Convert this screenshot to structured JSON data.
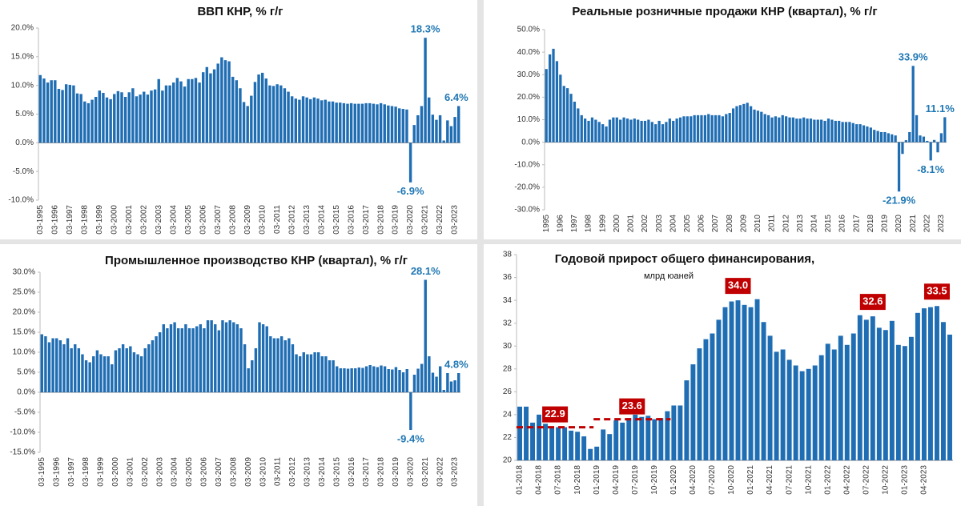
{
  "chart_data": [
    {
      "type": "bar",
      "title": "ВВП КНР, % г/г",
      "color": "#1f6db3",
      "label_color": "#1f77b4",
      "categories": [
        "03-1995",
        null,
        null,
        null,
        "03-1996",
        null,
        null,
        null,
        "03-1997",
        null,
        null,
        null,
        "03-1998",
        null,
        null,
        null,
        "03-1999",
        null,
        null,
        null,
        "03-2000",
        null,
        null,
        null,
        "03-2001",
        null,
        null,
        null,
        "03-2002",
        null,
        null,
        null,
        "03-2003",
        null,
        null,
        null,
        "03-2004",
        null,
        null,
        null,
        "03-2005",
        null,
        null,
        null,
        "03-2006",
        null,
        null,
        null,
        "03-2007",
        null,
        null,
        null,
        "03-2008",
        null,
        null,
        null,
        "03-2009",
        null,
        null,
        null,
        "03-2010",
        null,
        null,
        null,
        "03-2011",
        null,
        null,
        null,
        "03-2012",
        null,
        null,
        null,
        "03-2013",
        null,
        null,
        null,
        "03-2014",
        null,
        null,
        null,
        "03-2015",
        null,
        null,
        null,
        "03-2016",
        null,
        null,
        null,
        "03-2017",
        null,
        null,
        null,
        "03-2018",
        null,
        null,
        null,
        "03-2019",
        null,
        null,
        null,
        "03-2020",
        null,
        null,
        null,
        "03-2021",
        null,
        null,
        null,
        "03-2022",
        null,
        null,
        null,
        "03-2023",
        null
      ],
      "values": [
        11.8,
        11.2,
        10.5,
        10.9,
        10.9,
        9.4,
        9.2,
        10.2,
        10.1,
        10.0,
        8.6,
        8.5,
        7.2,
        6.9,
        7.5,
        8.0,
        9.1,
        8.7,
        7.9,
        7.6,
        8.5,
        9.0,
        8.8,
        8.0,
        8.8,
        9.5,
        8.1,
        8.4,
        8.9,
        8.4,
        9.1,
        9.3,
        11.1,
        9.1,
        10.0,
        10.0,
        10.5,
        11.3,
        10.7,
        9.8,
        11.1,
        11.1,
        11.3,
        10.5,
        12.3,
        13.2,
        12.1,
        12.8,
        13.8,
        14.9,
        14.4,
        14.2,
        11.5,
        10.9,
        9.5,
        7.1,
        6.4,
        8.2,
        10.6,
        11.9,
        12.2,
        11.2,
        10.0,
        9.9,
        10.2,
        10.0,
        9.5,
        8.9,
        8.1,
        7.7,
        7.5,
        8.1,
        7.9,
        7.6,
        7.9,
        7.7,
        7.4,
        7.5,
        7.2,
        7.2,
        7.0,
        7.0,
        6.9,
        6.8,
        6.9,
        6.8,
        6.8,
        6.8,
        6.9,
        6.9,
        6.8,
        6.7,
        6.9,
        6.7,
        6.5,
        6.4,
        6.3,
        6.0,
        5.9,
        5.8,
        -6.9,
        3.1,
        4.8,
        6.4,
        18.3,
        7.9,
        4.9,
        4.0,
        4.8,
        0.4,
        3.9,
        2.9,
        4.5,
        6.4
      ],
      "value_labels": {
        "100": "-6.9%",
        "104": "18.3%",
        "113": "6.4%"
      },
      "ylim": [
        -10,
        20
      ],
      "yticks": [
        {
          "value": -10,
          "label": "-10.0%"
        },
        {
          "value": -5,
          "label": "-5.0%"
        },
        {
          "value": 0,
          "label": "0.0%"
        },
        {
          "value": 5,
          "label": "5.0%"
        },
        {
          "value": 10,
          "label": "10.0%"
        },
        {
          "value": 15,
          "label": "15.0%"
        },
        {
          "value": 20,
          "label": "20.0%"
        }
      ]
    },
    {
      "type": "bar",
      "title": "Реальные розничные продажи КНР (квартал), % г/г",
      "color": "#1f6db3",
      "label_color": "#1f77b4",
      "categories": [
        "1995",
        null,
        null,
        null,
        "1996",
        null,
        null,
        null,
        "1997",
        null,
        null,
        null,
        "1998",
        null,
        null,
        null,
        "1999",
        null,
        null,
        null,
        "2000",
        null,
        null,
        null,
        "2001",
        null,
        null,
        null,
        "2002",
        null,
        null,
        null,
        "2003",
        null,
        null,
        null,
        "2004",
        null,
        null,
        null,
        "2005",
        null,
        null,
        null,
        "2006",
        null,
        null,
        null,
        "2007",
        null,
        null,
        null,
        "2008",
        null,
        null,
        null,
        "2009",
        null,
        null,
        null,
        "2010",
        null,
        null,
        null,
        "2011",
        null,
        null,
        null,
        "2012",
        null,
        null,
        null,
        "2013",
        null,
        null,
        null,
        "2014",
        null,
        null,
        null,
        "2015",
        null,
        null,
        null,
        "2016",
        null,
        null,
        null,
        "2017",
        null,
        null,
        null,
        "2018",
        null,
        null,
        null,
        "2019",
        null,
        null,
        null,
        "2020",
        null,
        null,
        null,
        "2021",
        null,
        null,
        null,
        "2022",
        null,
        null,
        null,
        "2023",
        null
      ],
      "values": [
        32.5,
        39,
        41.5,
        36,
        30,
        25,
        24,
        21.5,
        18,
        15,
        12,
        10.5,
        9.5,
        11,
        10,
        9,
        8,
        7,
        10,
        11,
        11,
        10,
        11,
        10.5,
        10,
        10.5,
        10,
        9.5,
        9.5,
        10,
        9,
        8,
        9.5,
        8,
        9,
        10.5,
        9.5,
        10.5,
        11,
        11.5,
        11.5,
        11.5,
        12,
        12,
        12,
        12,
        12.5,
        12,
        12,
        12,
        11.5,
        12.5,
        13,
        15,
        16,
        16.5,
        17,
        17.5,
        16,
        14.5,
        14,
        13.5,
        12.5,
        12,
        11,
        11.5,
        11,
        12,
        11.5,
        11,
        11,
        10.5,
        10.5,
        11,
        10.5,
        10.5,
        10,
        10,
        10,
        9.5,
        10.5,
        10,
        9.5,
        9.5,
        9,
        9,
        9,
        8.5,
        8,
        8,
        7.5,
        7,
        6.5,
        5.5,
        5,
        4.5,
        4.5,
        4,
        3.5,
        3,
        -21.9,
        -5.2,
        0.9,
        4.5,
        33.9,
        12.0,
        3.0,
        2.5,
        0.6,
        -8.1,
        1.0,
        -4.5,
        4.0,
        11.1
      ],
      "value_labels": {
        "100": "-21.9%",
        "104": "33.9%",
        "109": "-8.1%",
        "113": "11.1%"
      },
      "ylim": [
        -30,
        50
      ],
      "yticks": [
        {
          "value": -30,
          "label": "-30.0%"
        },
        {
          "value": -20,
          "label": "-20.0%"
        },
        {
          "value": -10,
          "label": "-10.0%"
        },
        {
          "value": 0,
          "label": "0.0%"
        },
        {
          "value": 10,
          "label": "10.0%"
        },
        {
          "value": 20,
          "label": "20.0%"
        },
        {
          "value": 30,
          "label": "30.0%"
        },
        {
          "value": 40,
          "label": "40.0%"
        },
        {
          "value": 50,
          "label": "50.0%"
        }
      ]
    },
    {
      "type": "bar",
      "title": "Промышленное производство КНР (квартал), % г/г",
      "color": "#1f6db3",
      "label_color": "#1f77b4",
      "categories": [
        "03-1995",
        null,
        null,
        null,
        "03-1996",
        null,
        null,
        null,
        "03-1997",
        null,
        null,
        null,
        "03-1998",
        null,
        null,
        null,
        "03-1999",
        null,
        null,
        null,
        "03-2000",
        null,
        null,
        null,
        "03-2001",
        null,
        null,
        null,
        "03-2002",
        null,
        null,
        null,
        "03-2003",
        null,
        null,
        null,
        "03-2004",
        null,
        null,
        null,
        "03-2005",
        null,
        null,
        null,
        "03-2006",
        null,
        null,
        null,
        "03-2007",
        null,
        null,
        null,
        "03-2008",
        null,
        null,
        null,
        "03-2009",
        null,
        null,
        null,
        "03-2010",
        null,
        null,
        null,
        "03-2011",
        null,
        null,
        null,
        "03-2012",
        null,
        null,
        null,
        "03-2013",
        null,
        null,
        null,
        "03-2014",
        null,
        null,
        null,
        "03-2015",
        null,
        null,
        null,
        "03-2016",
        null,
        null,
        null,
        "03-2017",
        null,
        null,
        null,
        "03-2018",
        null,
        null,
        null,
        "03-2019",
        null,
        null,
        null,
        "03-2020",
        null,
        null,
        null,
        "03-2021",
        null,
        null,
        null,
        "03-2022",
        null,
        null,
        null,
        "03-2023",
        null
      ],
      "values": [
        14.5,
        14,
        12.5,
        13.5,
        13.5,
        13,
        12,
        13.5,
        11,
        12,
        11,
        9.5,
        8,
        7.5,
        9,
        10.5,
        9.5,
        9,
        9,
        7,
        10.5,
        11,
        12,
        11,
        11.5,
        10,
        9.5,
        9,
        11,
        12,
        13,
        14,
        15,
        17,
        16,
        17,
        17.5,
        16,
        16,
        17,
        16,
        16,
        16.5,
        17,
        16,
        18,
        18,
        17,
        15.5,
        18,
        17.5,
        18,
        17.5,
        17,
        16,
        12,
        6,
        8,
        11,
        17.5,
        17,
        16.5,
        14,
        13.5,
        13.5,
        14,
        13,
        13.5,
        12,
        9.5,
        9,
        10,
        9.5,
        9.5,
        10,
        10,
        9,
        9,
        8,
        8,
        6.5,
        6,
        6,
        5.9,
        6,
        6,
        6.2,
        6.1,
        6.5,
        6.8,
        6.5,
        6.3,
        6.7,
        6.5,
        5.8,
        5.7,
        6.3,
        5.6,
        5.0,
        5.8,
        -9.4,
        4.4,
        5.9,
        7.1,
        28.1,
        9.0,
        4.9,
        3.9,
        6.5,
        0.6,
        4.8,
        2.7,
        3.0,
        4.8
      ],
      "value_labels": {
        "100": "-9.4%",
        "104": "28.1%",
        "113": "4.8%"
      },
      "ylim": [
        -15,
        30
      ],
      "yticks": [
        {
          "value": -15,
          "label": "-15.0%"
        },
        {
          "value": -10,
          "label": "-10.0%"
        },
        {
          "value": -5,
          "label": "-5.0%"
        },
        {
          "value": 0,
          "label": "0.0%"
        },
        {
          "value": 5,
          "label": "5.0%"
        },
        {
          "value": 10,
          "label": "10.0%"
        },
        {
          "value": 15,
          "label": "15.0%"
        },
        {
          "value": 20,
          "label": "20.0%"
        },
        {
          "value": 25,
          "label": "25.0%"
        },
        {
          "value": 30,
          "label": "30.0%"
        }
      ]
    },
    {
      "type": "bar",
      "title": "Годовой прирост общего финансирования,",
      "subtitle": "млрд юаней",
      "color": "#1f6db3",
      "label_color": "#c00000",
      "categories": [
        "01-2018",
        null,
        null,
        "04-2018",
        null,
        null,
        "07-2018",
        null,
        null,
        "10-2018",
        null,
        null,
        "01-2019",
        null,
        null,
        "04-2019",
        null,
        null,
        "07-2019",
        null,
        null,
        "10-2019",
        null,
        null,
        "01-2020",
        null,
        null,
        "04-2020",
        null,
        null,
        "07-2020",
        null,
        null,
        "10-2020",
        null,
        null,
        "01-2021",
        null,
        null,
        "04-2021",
        null,
        null,
        "07-2021",
        null,
        null,
        "10-2021",
        null,
        null,
        "01-2022",
        null,
        null,
        "04-2022",
        null,
        null,
        "07-2022",
        null,
        null,
        "10-2022",
        null,
        null,
        "01-2023",
        null,
        null,
        "04-2023",
        null,
        null,
        null,
        null
      ],
      "values": [
        24.7,
        24.7,
        23.3,
        24.0,
        23.2,
        22.9,
        22.9,
        22.9,
        22.6,
        22.5,
        22.1,
        21.0,
        21.2,
        22.7,
        22.3,
        23.5,
        23.3,
        23.7,
        24.0,
        23.8,
        23.9,
        23.6,
        23.7,
        24.3,
        24.8,
        24.8,
        27.0,
        28.4,
        29.8,
        30.6,
        31.1,
        32.3,
        33.4,
        33.9,
        34.0,
        33.6,
        33.4,
        34.1,
        32.1,
        30.9,
        29.5,
        29.7,
        28.8,
        28.3,
        27.8,
        28.0,
        28.3,
        29.2,
        30.2,
        29.7,
        30.9,
        30.1,
        31.1,
        32.7,
        32.3,
        32.6,
        31.6,
        31.4,
        32.2,
        30.1,
        30.0,
        30.8,
        32.9,
        33.3,
        33.4,
        33.5,
        32.1,
        31.0
      ],
      "value_labels": {
        "34": "34.0",
        "55": "32.6",
        "65": "33.5"
      },
      "reference_lines": [
        {
          "value": 22.9,
          "label": "22.9",
          "from": "01-2018"
        },
        {
          "value": 23.6,
          "label": "23.6",
          "from": "01-2019"
        }
      ],
      "ylim": [
        20,
        38
      ],
      "yticks": [
        20,
        22,
        24,
        26,
        28,
        30,
        32,
        34,
        36,
        38
      ]
    }
  ]
}
